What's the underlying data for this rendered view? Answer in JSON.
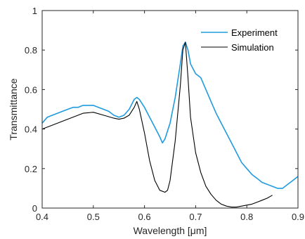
{
  "chart_data": {
    "type": "line",
    "xlabel": "Wavelength [μm]",
    "ylabel": "Transmittance",
    "xlim": [
      0.4,
      0.9
    ],
    "ylim": [
      0,
      1
    ],
    "x_ticks": [
      "0.4",
      "0.5",
      "0.6",
      "0.7",
      "0.8",
      "0.9"
    ],
    "y_ticks": [
      "0",
      "0.2",
      "0.4",
      "0.6",
      "0.8",
      "1"
    ],
    "grid": false,
    "legend_position": "top-right",
    "series": [
      {
        "name": "Experiment",
        "color": "#1f9bdf",
        "x": [
          0.4,
          0.41,
          0.42,
          0.43,
          0.44,
          0.45,
          0.46,
          0.47,
          0.48,
          0.49,
          0.5,
          0.51,
          0.52,
          0.53,
          0.54,
          0.55,
          0.56,
          0.57,
          0.58,
          0.585,
          0.59,
          0.6,
          0.61,
          0.62,
          0.63,
          0.635,
          0.64,
          0.65,
          0.66,
          0.67,
          0.675,
          0.68,
          0.685,
          0.69,
          0.7,
          0.71,
          0.72,
          0.73,
          0.74,
          0.75,
          0.76,
          0.77,
          0.78,
          0.79,
          0.8,
          0.81,
          0.82,
          0.83,
          0.84,
          0.85,
          0.86,
          0.87,
          0.88,
          0.89,
          0.9
        ],
        "y": [
          0.43,
          0.46,
          0.47,
          0.48,
          0.49,
          0.5,
          0.51,
          0.51,
          0.52,
          0.52,
          0.52,
          0.51,
          0.5,
          0.49,
          0.47,
          0.46,
          0.47,
          0.5,
          0.55,
          0.56,
          0.55,
          0.51,
          0.46,
          0.41,
          0.36,
          0.33,
          0.35,
          0.43,
          0.56,
          0.73,
          0.82,
          0.84,
          0.8,
          0.73,
          0.68,
          0.66,
          0.6,
          0.54,
          0.48,
          0.43,
          0.38,
          0.33,
          0.28,
          0.23,
          0.2,
          0.17,
          0.15,
          0.13,
          0.12,
          0.11,
          0.1,
          0.1,
          0.12,
          0.14,
          0.16
        ]
      },
      {
        "name": "Simulation",
        "color": "#000000",
        "x": [
          0.4,
          0.42,
          0.44,
          0.46,
          0.48,
          0.5,
          0.52,
          0.54,
          0.55,
          0.56,
          0.57,
          0.58,
          0.585,
          0.59,
          0.6,
          0.61,
          0.62,
          0.63,
          0.64,
          0.645,
          0.65,
          0.66,
          0.67,
          0.675,
          0.68,
          0.685,
          0.69,
          0.7,
          0.71,
          0.72,
          0.73,
          0.74,
          0.75,
          0.76,
          0.77,
          0.78,
          0.79,
          0.8,
          0.81,
          0.82,
          0.83,
          0.84,
          0.85
        ],
        "y": [
          0.4,
          0.42,
          0.44,
          0.46,
          0.48,
          0.485,
          0.47,
          0.455,
          0.45,
          0.455,
          0.47,
          0.51,
          0.54,
          0.5,
          0.38,
          0.24,
          0.14,
          0.09,
          0.08,
          0.09,
          0.14,
          0.34,
          0.62,
          0.8,
          0.84,
          0.66,
          0.46,
          0.28,
          0.18,
          0.11,
          0.07,
          0.04,
          0.02,
          0.01,
          0.005,
          0.005,
          0.01,
          0.015,
          0.02,
          0.03,
          0.04,
          0.05,
          0.065
        ]
      }
    ]
  }
}
